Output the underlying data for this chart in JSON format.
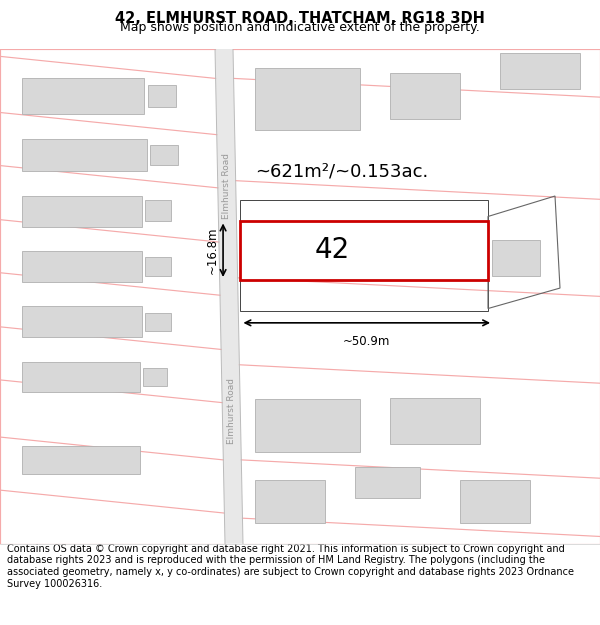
{
  "title": "42, ELMHURST ROAD, THATCHAM, RG18 3DH",
  "subtitle": "Map shows position and indicative extent of the property.",
  "footer": "Contains OS data © Crown copyright and database right 2021. This information is subject to Crown copyright and database rights 2023 and is reproduced with the permission of HM Land Registry. The polygons (including the associated geometry, namely x, y co-ordinates) are subject to Crown copyright and database rights 2023 Ordnance Survey 100026316.",
  "area_text": "~621m²/~0.153ac.",
  "number_text": "42",
  "dim_width": "~50.9m",
  "dim_height": "~16.8m",
  "road_label": "Elmhurst Road",
  "red_color": "#cc0000",
  "pink_color": "#f5aaaa",
  "building_fill": "#d8d8d8",
  "building_edge": "#b0b0b0",
  "road_fill": "#e8e8e8",
  "road_edge": "#bbbbbb",
  "bg_color": "#ffffff",
  "title_fontsize": 10.5,
  "subtitle_fontsize": 9,
  "footer_fontsize": 7.0,
  "area_fontsize": 13,
  "number_fontsize": 20,
  "dim_fontsize": 8.5,
  "road_label_fontsize": 6.5
}
